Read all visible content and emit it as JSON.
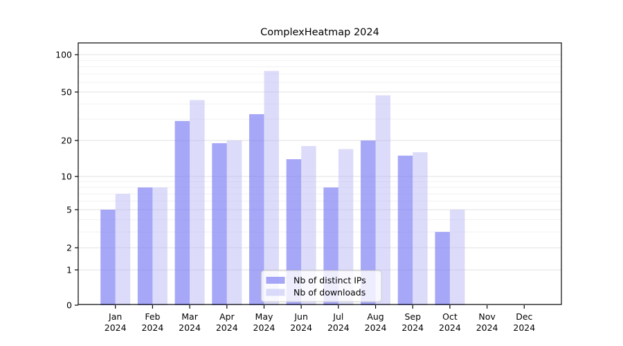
{
  "chart_data": {
    "type": "bar",
    "title": "ComplexHeatmap 2024",
    "xlabel": "",
    "ylabel": "",
    "x_labels": [
      {
        "line1": "Jan",
        "line2": "2024"
      },
      {
        "line1": "Feb",
        "line2": "2024"
      },
      {
        "line1": "Mar",
        "line2": "2024"
      },
      {
        "line1": "Apr",
        "line2": "2024"
      },
      {
        "line1": "May",
        "line2": "2024"
      },
      {
        "line1": "Jun",
        "line2": "2024"
      },
      {
        "line1": "Jul",
        "line2": "2024"
      },
      {
        "line1": "Aug",
        "line2": "2024"
      },
      {
        "line1": "Sep",
        "line2": "2024"
      },
      {
        "line1": "Oct",
        "line2": "2024"
      },
      {
        "line1": "Nov",
        "line2": "2024"
      },
      {
        "line1": "Dec",
        "line2": "2024"
      }
    ],
    "series": [
      {
        "name": "Nb of distinct IPs",
        "color": "#8282f5",
        "opacity": 0.7,
        "values": [
          5,
          8,
          29,
          19,
          33,
          14,
          8,
          20,
          15,
          3,
          0,
          0
        ]
      },
      {
        "name": "Nb of downloads",
        "color": "#b9b9f5",
        "opacity": 0.5,
        "values": [
          7,
          8,
          43,
          20,
          74,
          18,
          17,
          47,
          16,
          5,
          0,
          0
        ]
      }
    ],
    "yscale": "log1p",
    "y_ticks": [
      0,
      1,
      2,
      5,
      10,
      20,
      50,
      100
    ],
    "y_minor_ticks": [
      3,
      4,
      6,
      7,
      8,
      9,
      30,
      40,
      60,
      70,
      80,
      90
    ],
    "ylim": [
      0,
      120
    ],
    "grid": "horizontal",
    "legend_position": "lower center",
    "colors": {
      "major_grid": "#e0e0e0",
      "minor_grid": "#f1f1f1",
      "spine": "#000000",
      "legend_border": "#cccccc",
      "legend_bg_rgba": "rgba(255,255,255,0.8)"
    }
  }
}
